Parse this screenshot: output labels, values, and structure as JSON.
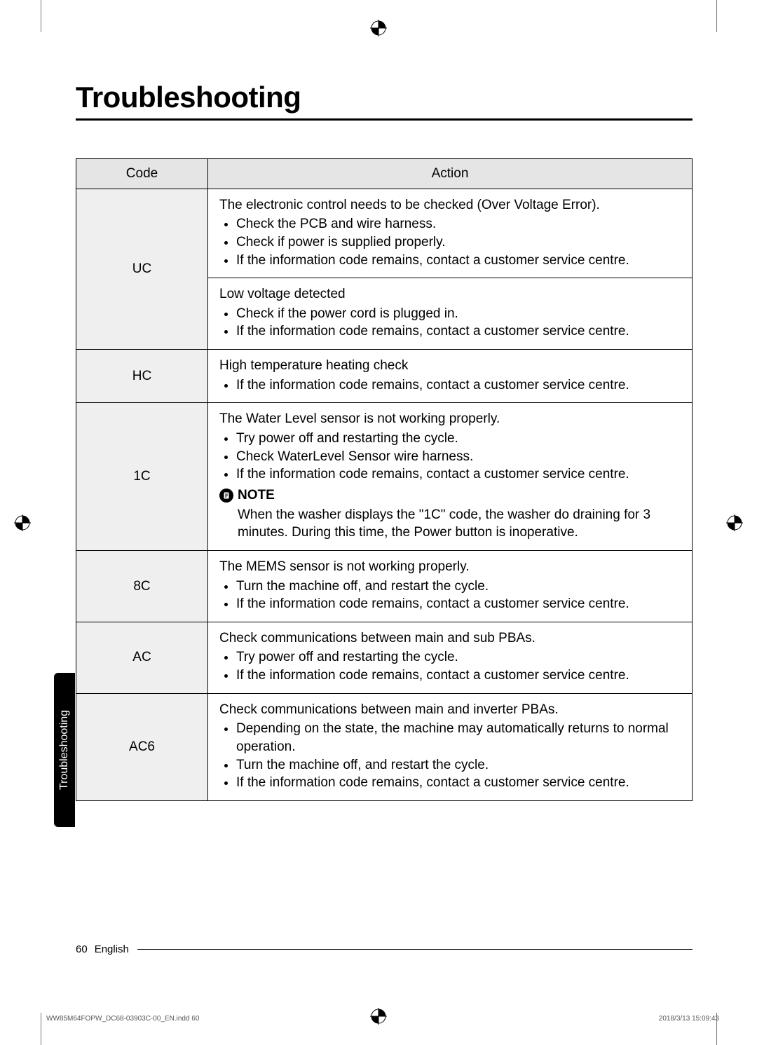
{
  "title": "Troubleshooting",
  "table": {
    "headers": {
      "code": "Code",
      "action": "Action"
    },
    "rows": [
      {
        "code": "UC",
        "rowspan": 2,
        "actions": [
          {
            "title": "The electronic control needs to be checked (Over Voltage Error).",
            "bullets": [
              "Check the PCB and wire harness.",
              "Check if power is supplied properly.",
              "If the information code remains, contact a customer service centre."
            ]
          },
          {
            "title": "Low voltage detected",
            "bullets": [
              "Check if the power cord is plugged in.",
              "If the information code remains, contact a customer service centre."
            ]
          }
        ]
      },
      {
        "code": "HC",
        "actions": [
          {
            "title": "High temperature heating check",
            "bullets": [
              "If the information code remains, contact a customer service centre."
            ]
          }
        ]
      },
      {
        "code": "1C",
        "actions": [
          {
            "title": "The Water Level sensor is not working properly.",
            "bullets": [
              "Try power off and restarting the cycle.",
              "Check WaterLevel Sensor wire harness.",
              "If the information code remains, contact a customer service centre."
            ],
            "note_label": "NOTE",
            "note_text": "When the washer displays the \"1C\" code,  the washer do draining for 3 minutes. During this time, the Power button is inoperative."
          }
        ]
      },
      {
        "code": "8C",
        "actions": [
          {
            "title": "The MEMS sensor is not working properly.",
            "bullets": [
              "Turn the machine off, and restart the cycle.",
              "If the information code remains, contact a customer service centre."
            ]
          }
        ]
      },
      {
        "code": "AC",
        "actions": [
          {
            "title": "Check communications between main and sub PBAs.",
            "bullets": [
              "Try power off and restarting the cycle.",
              "If the information code remains, contact a customer service centre."
            ]
          }
        ]
      },
      {
        "code": "AC6",
        "actions": [
          {
            "title": "Check communications between main and inverter PBAs.",
            "bullets": [
              "Depending on the state, the machine may automatically returns to normal operation.",
              "Turn the machine off, and restart the cycle.",
              "If the information code remains, contact a customer service centre."
            ]
          }
        ]
      }
    ]
  },
  "side_tab": "Troubleshooting",
  "footer": {
    "page": "60",
    "lang": "English"
  },
  "print_footer": {
    "left": "WW85M64FOPW_DC68-03903C-00_EN.indd   60",
    "right": "2018/3/13   15:09:43"
  }
}
